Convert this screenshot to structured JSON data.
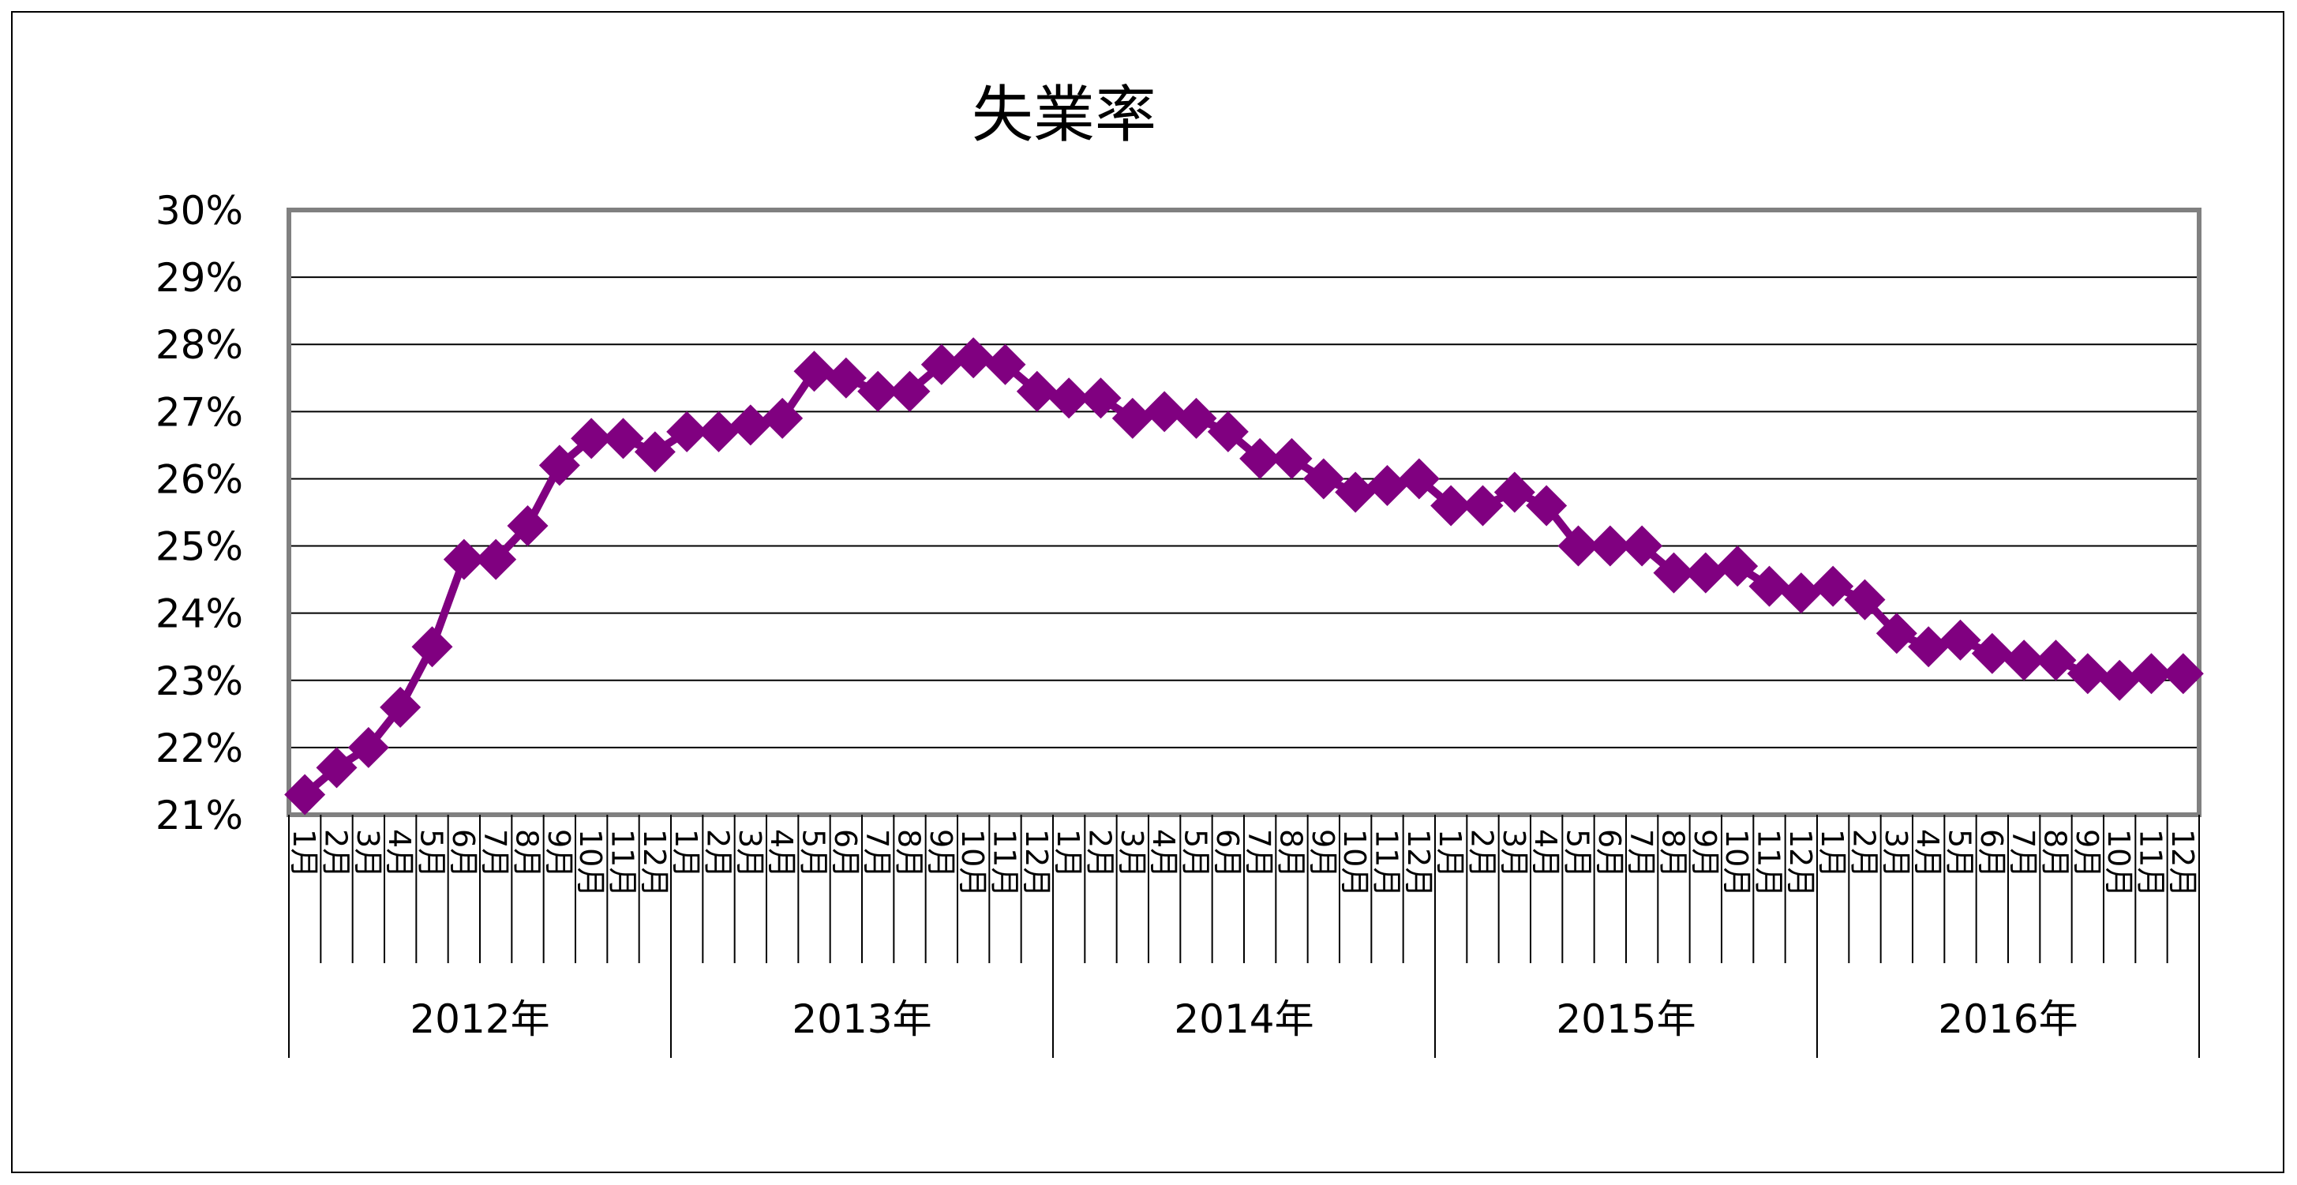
{
  "chart_data": {
    "type": "line",
    "title": "失業率",
    "xlabel": "",
    "ylabel": "",
    "ylim": [
      21,
      30
    ],
    "y_ticks": [
      "21%",
      "22%",
      "23%",
      "24%",
      "25%",
      "26%",
      "27%",
      "28%",
      "29%",
      "30%"
    ],
    "grid": true,
    "legend": "none",
    "colors": {
      "series": "#800080",
      "grid": "#000000",
      "axis": "#808080"
    },
    "years": [
      "2012年",
      "2013年",
      "2014年",
      "2015年",
      "2016年"
    ],
    "months": [
      "1月",
      "2月",
      "3月",
      "4月",
      "5月",
      "6月",
      "7月",
      "8月",
      "9月",
      "10月",
      "11月",
      "12月"
    ],
    "series": [
      {
        "values": [
          21.3,
          21.7,
          22.0,
          22.6,
          23.5,
          24.8,
          24.8,
          25.3,
          26.2,
          26.6,
          26.6,
          26.4,
          26.7,
          26.7,
          26.8,
          26.9,
          27.6,
          27.5,
          27.3,
          27.3,
          27.7,
          27.8,
          27.7,
          27.3,
          27.2,
          27.2,
          26.9,
          27.0,
          26.9,
          26.7,
          26.3,
          26.3,
          26.0,
          25.8,
          25.9,
          26.0,
          25.6,
          25.6,
          25.8,
          25.6,
          25.0,
          25.0,
          25.0,
          24.6,
          24.6,
          24.7,
          24.4,
          24.3,
          24.4,
          24.2,
          23.7,
          23.5,
          23.6,
          23.4,
          23.3,
          23.3,
          23.1,
          23.0,
          23.1,
          23.1
        ]
      }
    ]
  }
}
